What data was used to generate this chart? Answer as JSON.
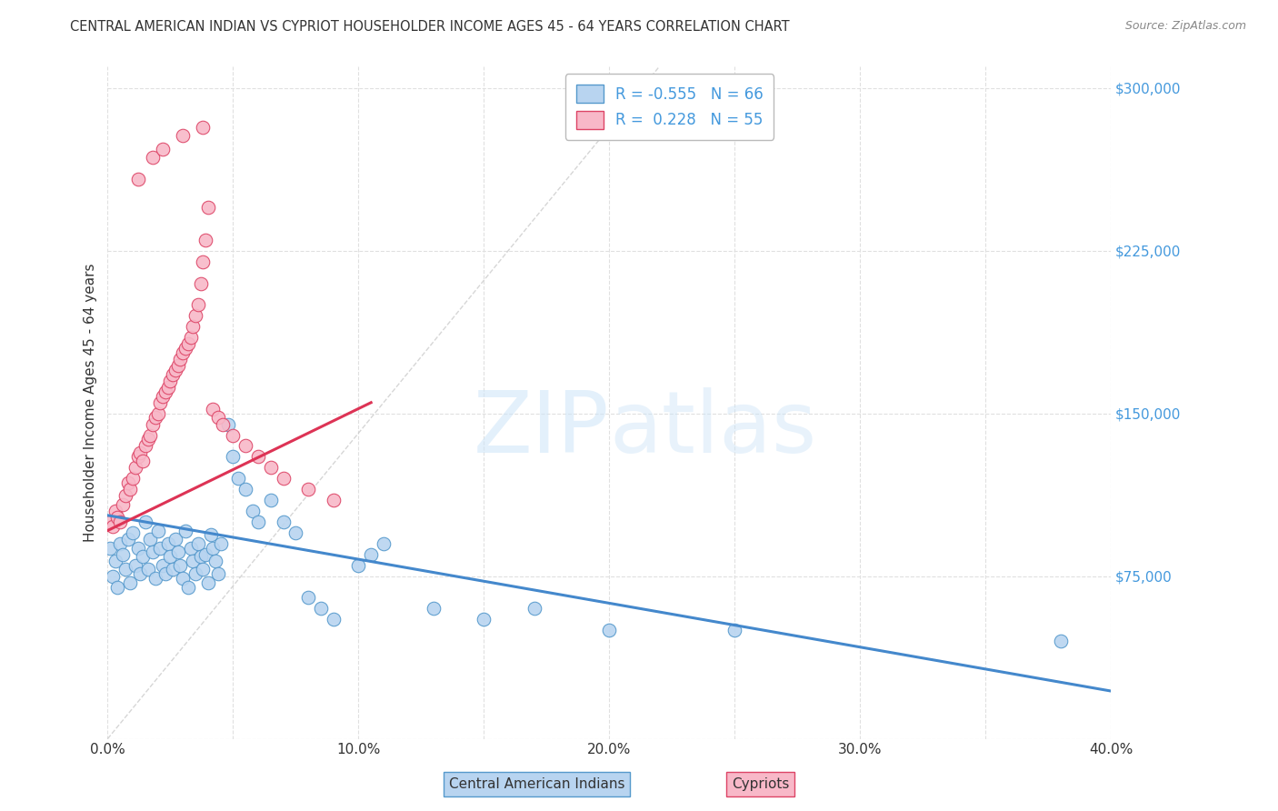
{
  "title": "CENTRAL AMERICAN INDIAN VS CYPRIOT HOUSEHOLDER INCOME AGES 45 - 64 YEARS CORRELATION CHART",
  "source": "Source: ZipAtlas.com",
  "ylabel": "Householder Income Ages 45 - 64 years",
  "xlim": [
    0.0,
    0.4
  ],
  "ylim": [
    0,
    310000
  ],
  "yticks": [
    0,
    75000,
    150000,
    225000,
    300000
  ],
  "ytick_labels": [
    "",
    "$75,000",
    "$150,000",
    "$225,000",
    "$300,000"
  ],
  "xtick_labels": [
    "0.0%",
    "",
    "10.0%",
    "",
    "20.0%",
    "",
    "30.0%",
    "",
    "40.0%"
  ],
  "xtick_values": [
    0.0,
    0.05,
    0.1,
    0.15,
    0.2,
    0.25,
    0.3,
    0.35,
    0.4
  ],
  "background_color": "#ffffff",
  "grid_color": "#e0e0e0",
  "blue_fill": "#b8d4f0",
  "pink_fill": "#f8b8c8",
  "blue_edge": "#5599cc",
  "pink_edge": "#dd4466",
  "blue_line": "#4488cc",
  "pink_line": "#dd3355",
  "diag_color": "#cccccc",
  "legend_R_blue": "-0.555",
  "legend_N_blue": "66",
  "legend_R_pink": "0.228",
  "legend_N_pink": "55",
  "watermark_color": "#ddeeff",
  "blue_trend_x": [
    0.0,
    0.4
  ],
  "blue_trend_y": [
    103000,
    22000
  ],
  "pink_trend_x": [
    0.0,
    0.105
  ],
  "pink_trend_y": [
    96000,
    155000
  ],
  "blue_scatter_x": [
    0.001,
    0.002,
    0.003,
    0.004,
    0.005,
    0.006,
    0.007,
    0.008,
    0.009,
    0.01,
    0.011,
    0.012,
    0.013,
    0.014,
    0.015,
    0.016,
    0.017,
    0.018,
    0.019,
    0.02,
    0.021,
    0.022,
    0.023,
    0.024,
    0.025,
    0.026,
    0.027,
    0.028,
    0.029,
    0.03,
    0.031,
    0.032,
    0.033,
    0.034,
    0.035,
    0.036,
    0.037,
    0.038,
    0.039,
    0.04,
    0.041,
    0.042,
    0.043,
    0.044,
    0.045,
    0.048,
    0.05,
    0.052,
    0.055,
    0.058,
    0.06,
    0.065,
    0.07,
    0.075,
    0.08,
    0.085,
    0.09,
    0.1,
    0.105,
    0.11,
    0.13,
    0.15,
    0.17,
    0.2,
    0.25,
    0.38
  ],
  "blue_scatter_y": [
    88000,
    75000,
    82000,
    70000,
    90000,
    85000,
    78000,
    92000,
    72000,
    95000,
    80000,
    88000,
    76000,
    84000,
    100000,
    78000,
    92000,
    86000,
    74000,
    96000,
    88000,
    80000,
    76000,
    90000,
    84000,
    78000,
    92000,
    86000,
    80000,
    74000,
    96000,
    70000,
    88000,
    82000,
    76000,
    90000,
    84000,
    78000,
    85000,
    72000,
    94000,
    88000,
    82000,
    76000,
    90000,
    145000,
    130000,
    120000,
    115000,
    105000,
    100000,
    110000,
    100000,
    95000,
    65000,
    60000,
    55000,
    80000,
    85000,
    90000,
    60000,
    55000,
    60000,
    50000,
    50000,
    45000
  ],
  "pink_scatter_x": [
    0.001,
    0.002,
    0.003,
    0.004,
    0.005,
    0.006,
    0.007,
    0.008,
    0.009,
    0.01,
    0.011,
    0.012,
    0.013,
    0.014,
    0.015,
    0.016,
    0.017,
    0.018,
    0.019,
    0.02,
    0.021,
    0.022,
    0.023,
    0.024,
    0.025,
    0.026,
    0.027,
    0.028,
    0.029,
    0.03,
    0.031,
    0.032,
    0.033,
    0.034,
    0.035,
    0.036,
    0.037,
    0.038,
    0.039,
    0.04,
    0.042,
    0.044,
    0.046,
    0.05,
    0.055,
    0.06,
    0.065,
    0.07,
    0.08,
    0.09,
    0.012,
    0.018,
    0.022,
    0.03,
    0.038
  ],
  "pink_scatter_y": [
    100000,
    98000,
    105000,
    102000,
    100000,
    108000,
    112000,
    118000,
    115000,
    120000,
    125000,
    130000,
    132000,
    128000,
    135000,
    138000,
    140000,
    145000,
    148000,
    150000,
    155000,
    158000,
    160000,
    162000,
    165000,
    168000,
    170000,
    172000,
    175000,
    178000,
    180000,
    182000,
    185000,
    190000,
    195000,
    200000,
    210000,
    220000,
    230000,
    245000,
    152000,
    148000,
    145000,
    140000,
    135000,
    130000,
    125000,
    120000,
    115000,
    110000,
    258000,
    268000,
    272000,
    278000,
    282000
  ]
}
